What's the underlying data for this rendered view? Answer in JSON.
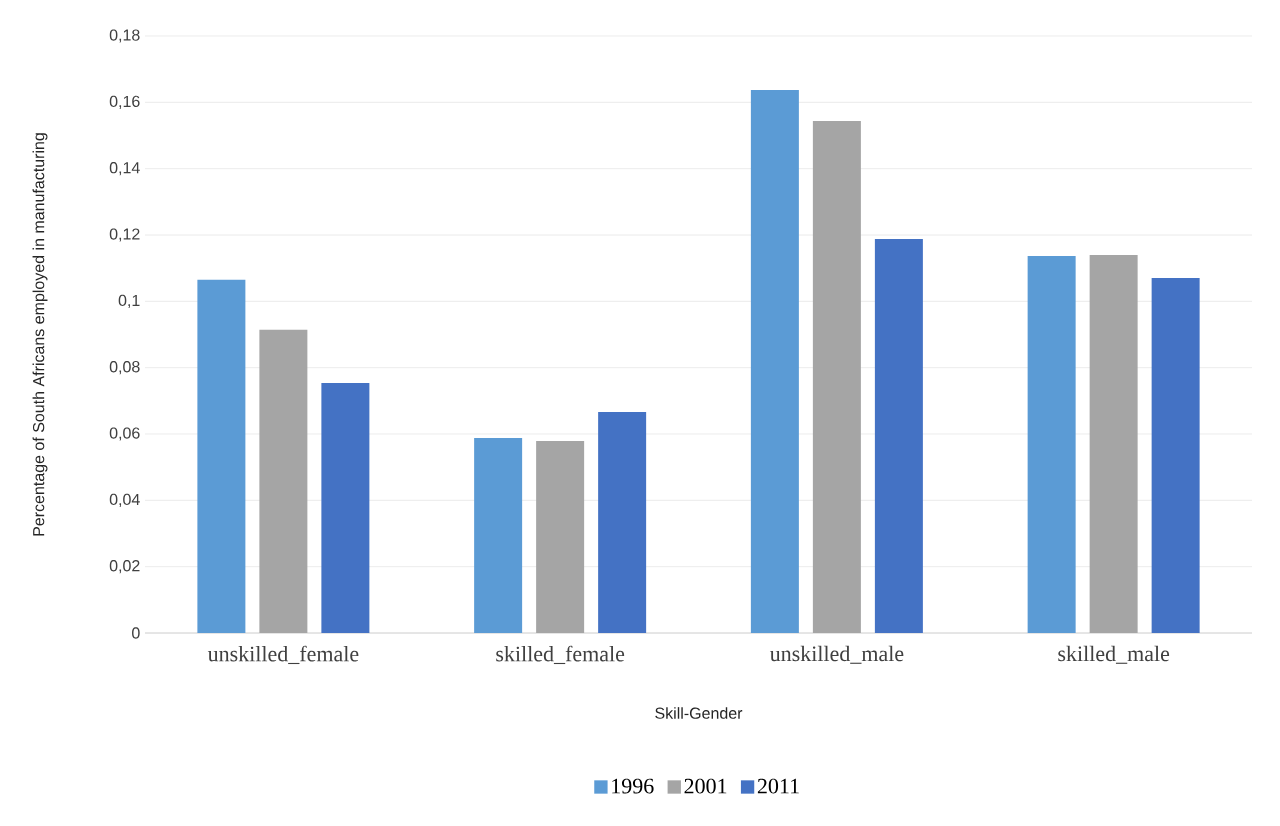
{
  "chart_data": {
    "type": "bar",
    "xlabel": "Skill-Gender",
    "ylabel": "Percentage  of South Africans employed in manufacturing",
    "categories": [
      "unskilled_female",
      "skilled_female",
      "unskilled_male",
      "skilled_male"
    ],
    "series": [
      {
        "name": "1996",
        "color": "#5b9bd5",
        "values": [
          0.1065,
          0.0588,
          0.1637,
          0.1137
        ]
      },
      {
        "name": "2001",
        "color": "#a5a5a5",
        "values": [
          0.0914,
          0.0579,
          0.1544,
          0.114
        ]
      },
      {
        "name": "2011",
        "color": "#4472c4",
        "values": [
          0.0754,
          0.0666,
          0.1188,
          0.107
        ]
      }
    ],
    "ylim": [
      0,
      0.18
    ],
    "yticks": [
      0,
      {
        "value": 0.02,
        "label": "0,02"
      },
      {
        "value": 0.04,
        "label": "0,04"
      },
      {
        "value": 0.06,
        "label": "0,06"
      },
      {
        "value": 0.08,
        "label": "0,08"
      },
      {
        "value": 0.1,
        "label": "0,1"
      },
      {
        "value": 0.12,
        "label": "0,12"
      },
      {
        "value": 0.14,
        "label": "0,14"
      },
      {
        "value": 0.16,
        "label": "0,16"
      },
      {
        "value": 0.18,
        "label": "0,18"
      }
    ],
    "grid": "y",
    "legend": "bottom"
  }
}
